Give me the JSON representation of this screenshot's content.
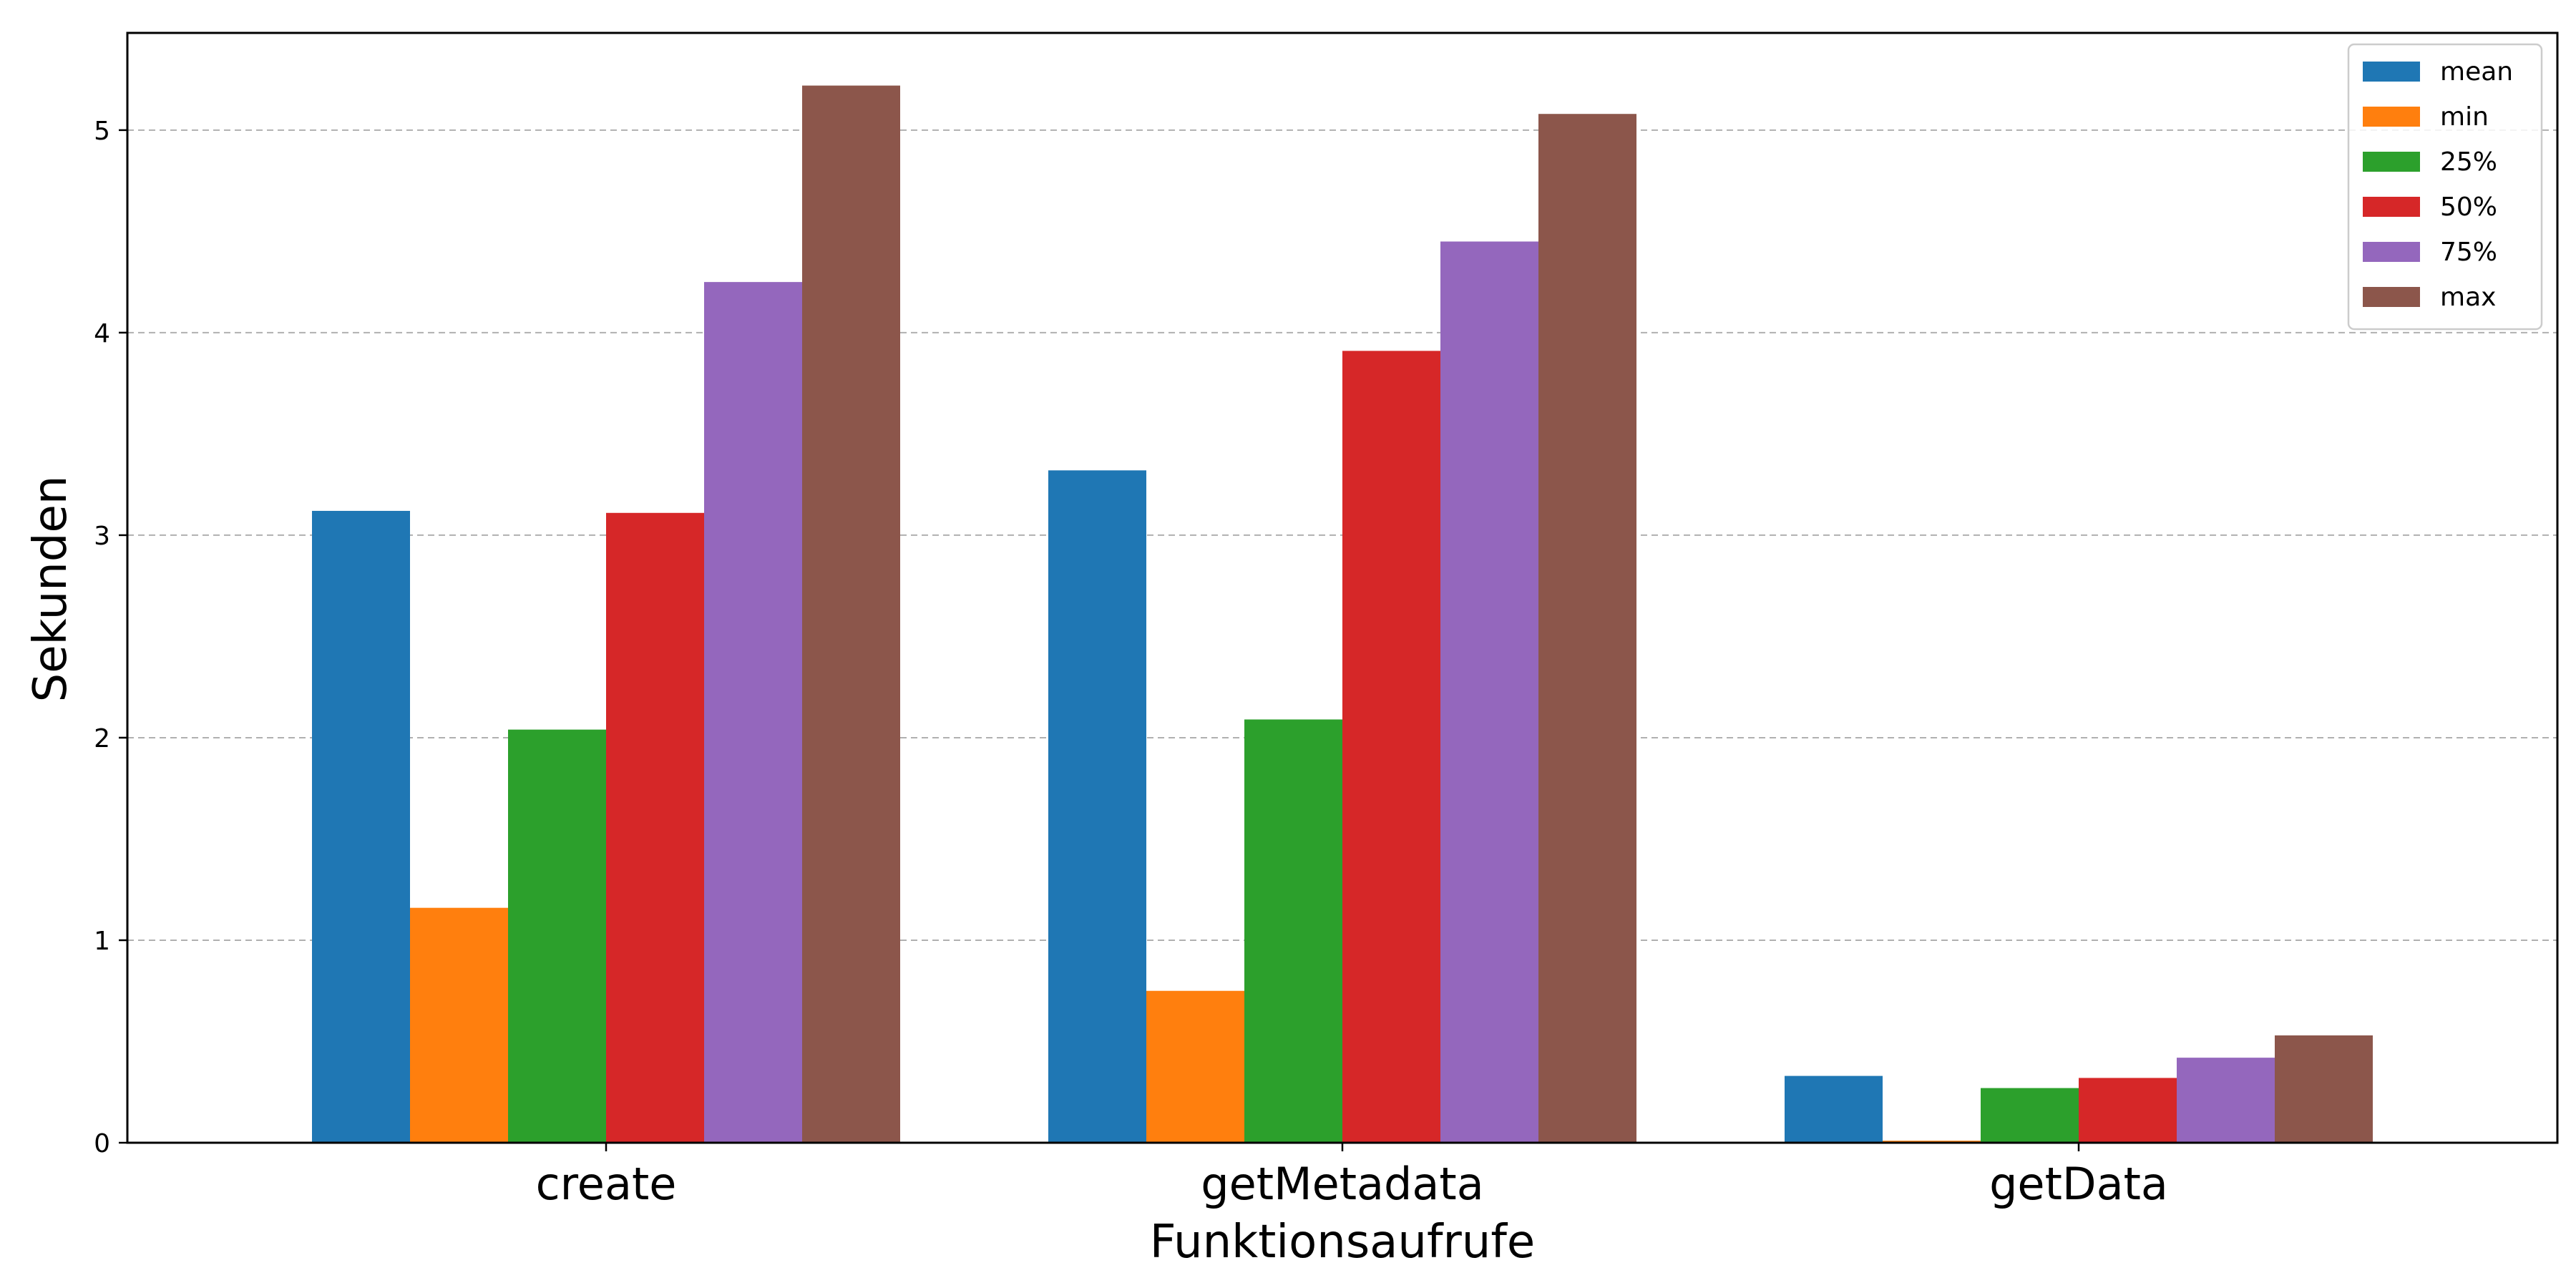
{
  "chart_data": {
    "type": "bar",
    "categories": [
      "create",
      "getMetadata",
      "getData"
    ],
    "series": [
      {
        "name": "mean",
        "color": "#1f77b4",
        "values": [
          3.12,
          3.32,
          0.33
        ]
      },
      {
        "name": "min",
        "color": "#ff7f0e",
        "values": [
          1.16,
          0.75,
          0.01
        ]
      },
      {
        "name": "25%",
        "color": "#2ca02c",
        "values": [
          2.04,
          2.09,
          0.27
        ]
      },
      {
        "name": "50%",
        "color": "#d62728",
        "values": [
          3.11,
          3.91,
          0.32
        ]
      },
      {
        "name": "75%",
        "color": "#9467bd",
        "values": [
          4.25,
          4.45,
          0.42
        ]
      },
      {
        "name": "max",
        "color": "#8c564b",
        "values": [
          5.22,
          5.08,
          0.53
        ]
      }
    ],
    "xlabel": "Funktionsaufrufe",
    "ylabel": "Sekunden",
    "ylim": [
      0,
      5.48
    ],
    "yticks": [
      "0",
      "1",
      "2",
      "3",
      "4",
      "5"
    ],
    "grid": "horizontal dashed",
    "legend_position": "top-right"
  }
}
